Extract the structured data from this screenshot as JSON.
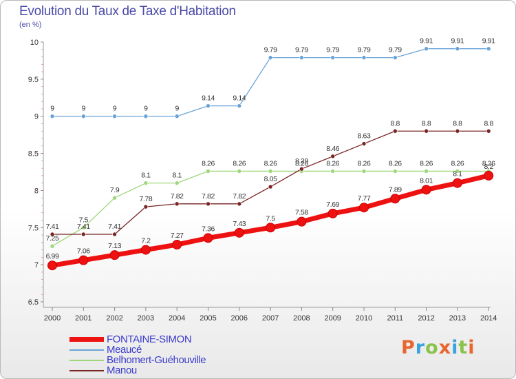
{
  "title": "Evolution du Taux de Taxe d'Habitation",
  "subtitle": "(en %)",
  "brand": {
    "letters": [
      "P",
      "r",
      "o",
      "x",
      "i",
      "t",
      "i"
    ],
    "colors": [
      "#e8662f",
      "#3aa2dc",
      "#8bc34a",
      "#e8662f",
      "#3aa2dc",
      "#8bc34a",
      "#e8662f"
    ]
  },
  "chart_data": {
    "type": "line",
    "categories": [
      "2000",
      "2001",
      "2002",
      "2003",
      "2004",
      "2005",
      "2006",
      "2007",
      "2008",
      "2009",
      "2010",
      "2011",
      "2012",
      "2013",
      "2014"
    ],
    "ylim": [
      6.5,
      10
    ],
    "yticks": [
      "6.5",
      "7",
      "7.5",
      "8",
      "8.5",
      "9",
      "9.5",
      "10"
    ],
    "grid": false,
    "legend_position": "bottom-left",
    "series": [
      {
        "name": "FONTAINE-SIMON",
        "color": "#ee1111",
        "values": [
          6.99,
          7.06,
          7.13,
          7.2,
          7.27,
          7.36,
          7.43,
          7.5,
          7.58,
          7.69,
          7.77,
          7.89,
          8.01,
          8.1,
          8.2
        ],
        "labels": [
          "6.99",
          "7.06",
          "7.13",
          "7.2",
          "7.27",
          "7.36",
          "7.43",
          "7.5",
          "7.58",
          "7.69",
          "7.77",
          "7.89",
          "8.01",
          "8.1",
          "8.2"
        ]
      },
      {
        "name": "Meaucé",
        "color": "#6aa4d6",
        "values": [
          9,
          9,
          9,
          9,
          9,
          9.14,
          9.14,
          9.79,
          9.79,
          9.79,
          9.79,
          9.79,
          9.91,
          9.91,
          9.91
        ],
        "labels": [
          "9",
          "9",
          "9",
          "9",
          "9",
          "9.14",
          "9.14",
          "9.79",
          "9.79",
          "9.79",
          "9.79",
          "9.79",
          "9.91",
          "9.91",
          "9.91"
        ]
      },
      {
        "name": "Belhomert-Guéhouville",
        "color": "#9ed67a",
        "values": [
          7.25,
          7.5,
          7.9,
          8.1,
          8.1,
          8.26,
          8.26,
          8.26,
          8.26,
          8.26,
          8.26,
          8.26,
          8.26,
          8.26,
          8.26
        ],
        "labels": [
          "7.25",
          "7.5",
          "7.9",
          "8.1",
          "8.1",
          "8.26",
          "8.26",
          "8.26",
          "8.26",
          "8.26",
          "8.26",
          "8.26",
          "8.26",
          "8.26",
          "8.26"
        ]
      },
      {
        "name": "Manou",
        "color": "#7a2424",
        "values": [
          7.41,
          7.41,
          7.41,
          7.78,
          7.82,
          7.82,
          7.82,
          8.05,
          8.29,
          8.46,
          8.63,
          8.8,
          8.8,
          8.8,
          8.8
        ],
        "labels": [
          "7.41",
          "7.41",
          "7.41",
          "7.78",
          "7.82",
          "7.82",
          "7.82",
          "8.05",
          "8.29",
          "8.46",
          "8.63",
          "8.8",
          "8.8",
          "8.8",
          "8.8"
        ]
      }
    ]
  }
}
